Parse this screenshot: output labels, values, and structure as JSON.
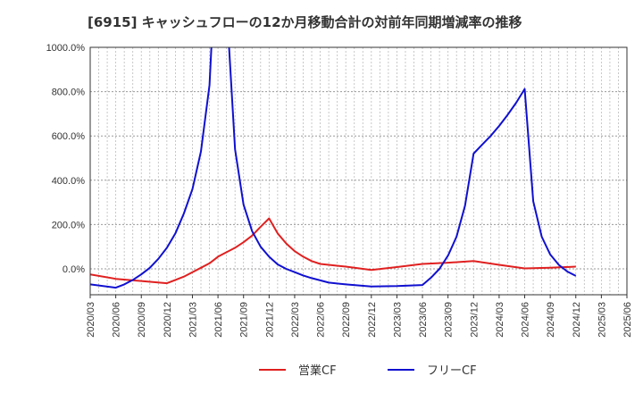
{
  "chart_data": {
    "type": "line",
    "title": "[6915]  キャッシュフローの12か月移動合計の対前年同期増減率の推移",
    "xlabel": "",
    "ylabel": "",
    "ylim": [
      -120,
      1000
    ],
    "y_ticks": [
      "1000.0%",
      "800.0%",
      "600.0%",
      "400.0%",
      "200.0%",
      "0.0%"
    ],
    "y_tick_values": [
      1000,
      800,
      600,
      400,
      200,
      0
    ],
    "x_tick_labels": [
      "2020/03",
      "2020/06",
      "2020/09",
      "2020/12",
      "2021/03",
      "2021/06",
      "2021/09",
      "2021/12",
      "2022/03",
      "2022/06",
      "2022/09",
      "2022/12",
      "2023/03",
      "2023/06",
      "2023/09",
      "2023/12",
      "2024/03",
      "2024/06",
      "2024/09",
      "2024/12",
      "2025/03",
      "2025/06"
    ],
    "grid": true,
    "legend_position": "bottom",
    "series": [
      {
        "name": "営業CF",
        "color": "#e02020",
        "points": [
          [
            "2020/03",
            -25
          ],
          [
            "2020/06",
            -45
          ],
          [
            "2020/09",
            -55
          ],
          [
            "2020/12",
            -65
          ],
          [
            "2021/01",
            -50
          ],
          [
            "2021/02",
            -35
          ],
          [
            "2021/03",
            -15
          ],
          [
            "2021/04",
            5
          ],
          [
            "2021/05",
            25
          ],
          [
            "2021/06",
            55
          ],
          [
            "2021/07",
            75
          ],
          [
            "2021/08",
            95
          ],
          [
            "2021/09",
            120
          ],
          [
            "2021/10",
            150
          ],
          [
            "2021/11",
            190
          ],
          [
            "2021/12",
            228
          ],
          [
            "2022/01",
            160
          ],
          [
            "2022/02",
            115
          ],
          [
            "2022/03",
            80
          ],
          [
            "2022/04",
            55
          ],
          [
            "2022/05",
            35
          ],
          [
            "2022/06",
            22
          ],
          [
            "2022/09",
            10
          ],
          [
            "2022/12",
            -5
          ],
          [
            "2023/03",
            8
          ],
          [
            "2023/06",
            22
          ],
          [
            "2023/09",
            28
          ],
          [
            "2023/12",
            35
          ],
          [
            "2024/03",
            18
          ],
          [
            "2024/06",
            2
          ],
          [
            "2024/09",
            5
          ],
          [
            "2024/12",
            10
          ]
        ]
      },
      {
        "name": "フリーCF",
        "color": "#1010d0",
        "points": [
          [
            "2020/03",
            -70
          ],
          [
            "2020/06",
            -85
          ],
          [
            "2020/07",
            -70
          ],
          [
            "2020/08",
            -50
          ],
          [
            "2020/09",
            -25
          ],
          [
            "2020/10",
            5
          ],
          [
            "2020/11",
            45
          ],
          [
            "2020/12",
            95
          ],
          [
            "2021/01",
            160
          ],
          [
            "2021/02",
            250
          ],
          [
            "2021/03",
            360
          ],
          [
            "2021/04",
            530
          ],
          [
            "2021/05",
            830
          ],
          [
            "2021/06",
            1600
          ],
          [
            "2021/07",
            1200
          ],
          [
            "2021/08",
            540
          ],
          [
            "2021/09",
            290
          ],
          [
            "2021/10",
            170
          ],
          [
            "2021/11",
            100
          ],
          [
            "2021/12",
            55
          ],
          [
            "2022/01",
            20
          ],
          [
            "2022/02",
            0
          ],
          [
            "2022/03",
            -15
          ],
          [
            "2022/04",
            -30
          ],
          [
            "2022/05",
            -42
          ],
          [
            "2022/06",
            -52
          ],
          [
            "2022/07",
            -62
          ],
          [
            "2022/09",
            -70
          ],
          [
            "2022/12",
            -80
          ],
          [
            "2023/03",
            -78
          ],
          [
            "2023/06",
            -73
          ],
          [
            "2023/07",
            -40
          ],
          [
            "2023/08",
            0
          ],
          [
            "2023/09",
            60
          ],
          [
            "2023/10",
            145
          ],
          [
            "2023/11",
            285
          ],
          [
            "2023/12",
            520
          ],
          [
            "2024/01",
            560
          ],
          [
            "2024/02",
            600
          ],
          [
            "2024/03",
            645
          ],
          [
            "2024/04",
            695
          ],
          [
            "2024/05",
            750
          ],
          [
            "2024/06",
            812
          ],
          [
            "2024/07",
            305
          ],
          [
            "2024/08",
            145
          ],
          [
            "2024/09",
            65
          ],
          [
            "2024/10",
            18
          ],
          [
            "2024/11",
            -12
          ],
          [
            "2024/12",
            -32
          ]
        ]
      }
    ]
  }
}
